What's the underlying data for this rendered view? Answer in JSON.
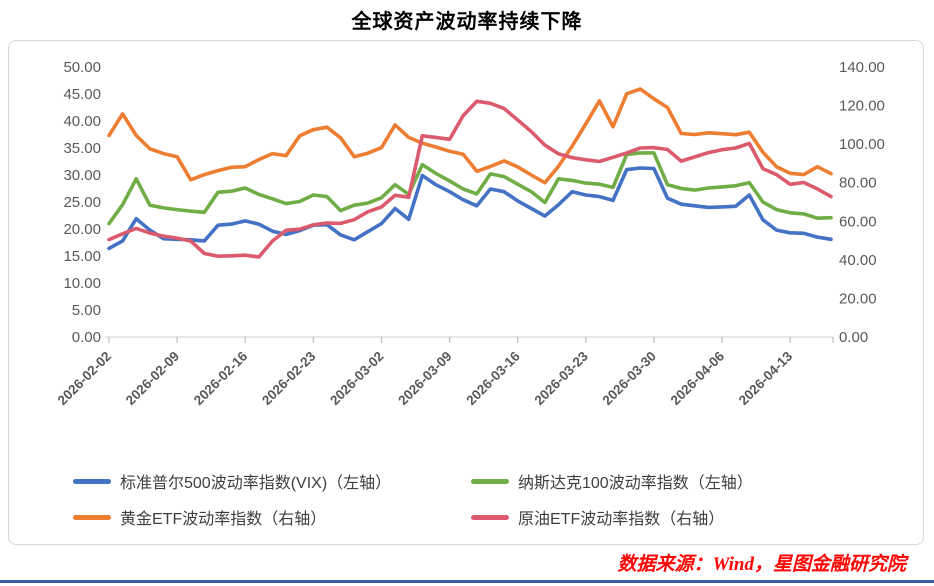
{
  "page": {
    "title": "全球资产波动率持续下降",
    "source_note": "数据来源：Wind，星图金融研究院"
  },
  "footer": {
    "divider_color": "#3D5CA8"
  },
  "chart_data": {
    "type": "line",
    "title": "全球资产波动率持续下降",
    "grid": false,
    "legend_position": "bottom",
    "left_axis": {
      "label": "",
      "min": 0,
      "max": 50,
      "ticks": [
        "50.00",
        "45.00",
        "40.00",
        "35.00",
        "30.00",
        "25.00",
        "20.00",
        "15.00",
        "10.00",
        "5.00",
        "0.00"
      ]
    },
    "right_axis": {
      "label": "",
      "min": 0,
      "max": 140,
      "ticks": [
        "140.00",
        "120.00",
        "100.00",
        "80.00",
        "60.00",
        "40.00",
        "20.00",
        "0.00"
      ]
    },
    "x": [
      "2026-02-02",
      "2026-02-03",
      "2026-02-04",
      "2026-02-05",
      "2026-02-06",
      "2026-02-09",
      "2026-02-10",
      "2026-02-11",
      "2026-02-12",
      "2026-02-13",
      "2026-02-16",
      "2026-02-17",
      "2026-02-18",
      "2026-02-19",
      "2026-02-20",
      "2026-02-23",
      "2026-02-24",
      "2026-02-25",
      "2026-02-26",
      "2026-02-27",
      "2026-03-02",
      "2026-03-03",
      "2026-03-04",
      "2026-03-05",
      "2026-03-06",
      "2026-03-09",
      "2026-03-10",
      "2026-03-11",
      "2026-03-12",
      "2026-03-13",
      "2026-03-16",
      "2026-03-17",
      "2026-03-18",
      "2026-03-19",
      "2026-03-20",
      "2026-03-23",
      "2026-03-24",
      "2026-03-25",
      "2026-03-26",
      "2026-03-27",
      "2026-03-30",
      "2026-03-31",
      "2026-04-01",
      "2026-04-02",
      "2026-04-03",
      "2026-04-06",
      "2026-04-07",
      "2026-04-08",
      "2026-04-09",
      "2026-04-10",
      "2026-04-13",
      "2026-04-14",
      "2026-04-15",
      "2026-04-16"
    ],
    "x_axis_tick_labels": [
      "2026-02-02",
      "2026-02-09",
      "2026-02-16",
      "2026-02-23",
      "2026-03-02",
      "2026-03-09",
      "2026-03-16",
      "2026-03-23",
      "2026-03-30",
      "2026-04-06",
      "2026-04-13"
    ],
    "series": [
      {
        "name": "标准普尔500波动率指数(VIX)（左轴）",
        "axis": "left",
        "color": "#4472C4",
        "values": [
          16.4,
          17.8,
          21.9,
          19.8,
          18.2,
          18.1,
          18.0,
          17.8,
          20.7,
          20.9,
          21.5,
          20.9,
          19.6,
          19.0,
          19.7,
          20.7,
          20.8,
          18.9,
          18.0,
          19.5,
          21.0,
          23.8,
          21.8,
          29.9,
          28.2,
          26.9,
          25.4,
          24.3,
          27.4,
          26.9,
          25.2,
          23.8,
          22.4,
          24.5,
          26.9,
          26.3,
          26.0,
          25.3,
          31.0,
          31.3,
          31.2,
          25.7,
          24.6,
          24.3,
          24.0,
          24.1,
          24.2,
          26.3,
          21.7,
          19.8,
          19.3,
          19.2,
          18.5,
          18.1
        ]
      },
      {
        "name": "纳斯达克100波动率指数（左轴）",
        "axis": "left",
        "color": "#70AD47",
        "values": [
          21.0,
          24.5,
          29.3,
          24.4,
          23.9,
          23.6,
          23.3,
          23.1,
          26.8,
          27.0,
          27.6,
          26.4,
          25.6,
          24.7,
          25.1,
          26.3,
          26.0,
          23.4,
          24.4,
          24.8,
          25.8,
          28.2,
          26.4,
          31.9,
          30.3,
          28.9,
          27.4,
          26.5,
          30.2,
          29.7,
          28.3,
          26.9,
          24.9,
          29.3,
          29.0,
          28.5,
          28.3,
          27.7,
          33.8,
          34.1,
          34.1,
          28.2,
          27.5,
          27.2,
          27.6,
          27.8,
          28.0,
          28.6,
          25.0,
          23.6,
          23.0,
          22.8,
          22.0,
          22.1
        ]
      },
      {
        "name": "黄金ETF波动率指数（右轴）",
        "axis": "right",
        "color": "#ED7D31",
        "values": [
          104.5,
          115.7,
          104.5,
          97.6,
          95.1,
          93.5,
          81.5,
          84.2,
          86.3,
          88.0,
          88.3,
          92.0,
          95.1,
          94.0,
          104.3,
          107.5,
          108.8,
          103.3,
          93.5,
          95.3,
          98.2,
          110.0,
          103.5,
          100.5,
          98.5,
          96.3,
          94.8,
          85.9,
          88.4,
          91.3,
          88.2,
          84.0,
          80.0,
          88.5,
          99.0,
          110.5,
          122.5,
          109.0,
          126.1,
          128.6,
          123.5,
          119.0,
          105.5,
          105.0,
          105.9,
          105.4,
          104.9,
          106.2,
          95.8,
          88.3,
          84.9,
          84.2,
          88.3,
          84.7
        ]
      },
      {
        "name": "原油ETF波动率指数（右轴）",
        "axis": "right",
        "color": "#DC5A6E",
        "values": [
          50.5,
          53.5,
          56.3,
          53.9,
          52.3,
          51.3,
          49.8,
          43.3,
          41.9,
          42.1,
          42.4,
          41.5,
          49.8,
          55.3,
          55.9,
          58.2,
          59.1,
          58.9,
          60.8,
          64.9,
          67.4,
          73.5,
          72.5,
          104.3,
          103.5,
          102.5,
          114.8,
          122.2,
          121.2,
          118.5,
          112.5,
          106.5,
          99.5,
          95.0,
          93.0,
          91.9,
          91.0,
          93.2,
          95.4,
          98.0,
          98.2,
          97.2,
          91.2,
          93.4,
          95.6,
          97.1,
          98.0,
          100.4,
          87.3,
          84.2,
          79.2,
          80.1,
          76.8,
          72.8
        ]
      }
    ]
  }
}
